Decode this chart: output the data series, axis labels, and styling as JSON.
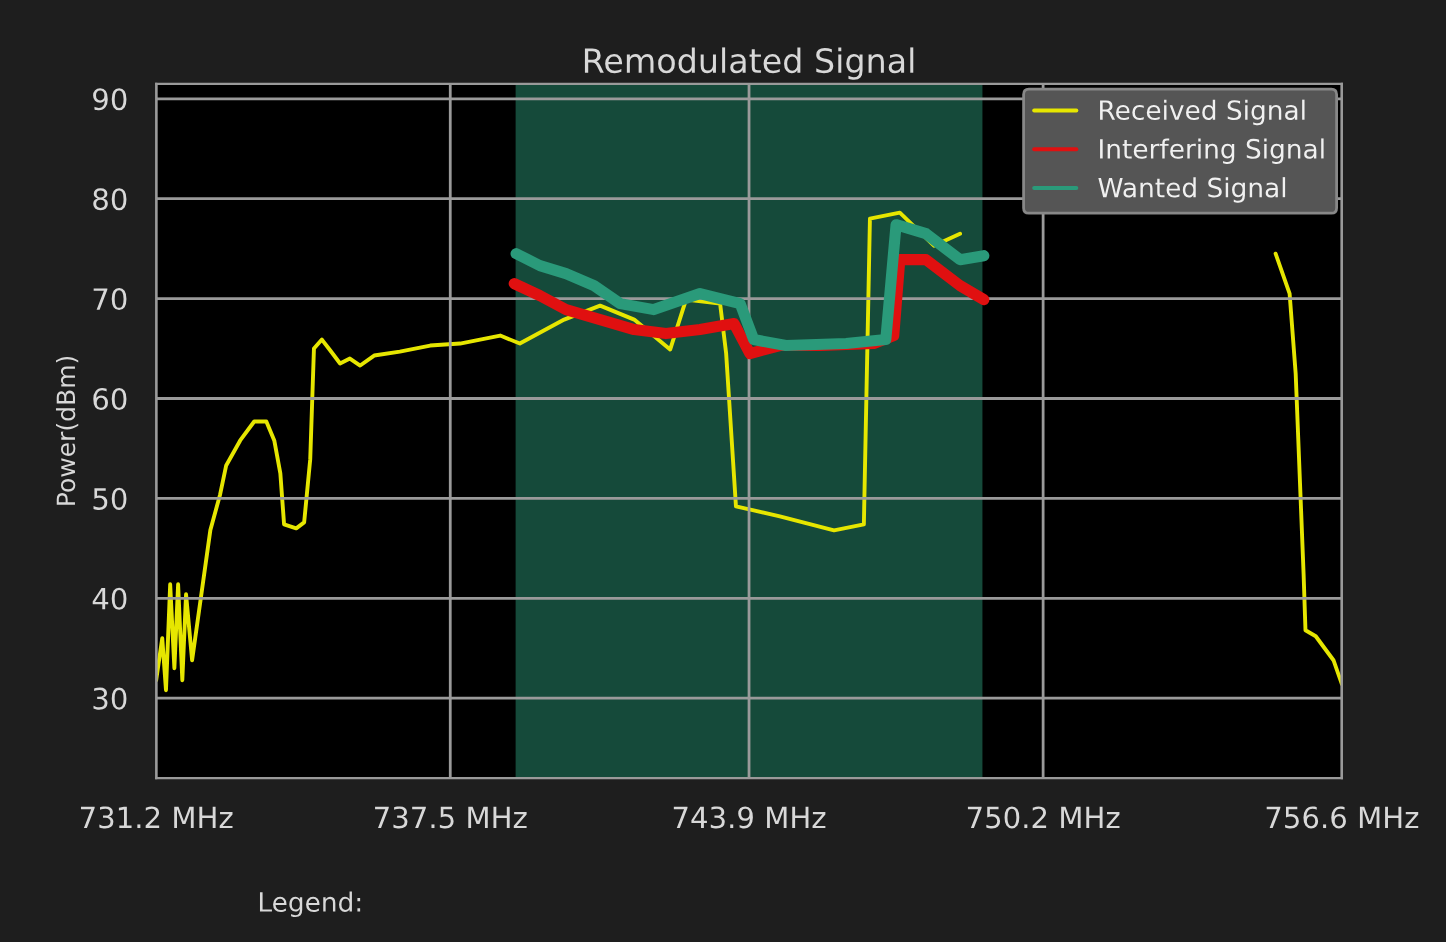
{
  "chart_data": {
    "type": "line",
    "title": "Remodulated Signal",
    "ylabel": "Power(dBm)",
    "xlim": [
      731.2,
      756.6
    ],
    "xticks": [
      {
        "value": 731.2,
        "label": "731.2 MHz"
      },
      {
        "value": 737.5,
        "label": "737.5 MHz"
      },
      {
        "value": 743.9,
        "label": "743.9 MHz"
      },
      {
        "value": 750.2,
        "label": "750.2 MHz"
      },
      {
        "value": 756.6,
        "label": "756.6 MHz"
      }
    ],
    "ylim": [
      22,
      91.5
    ],
    "yticks": [
      30,
      40,
      50,
      60,
      70,
      80,
      90
    ],
    "grid": true,
    "legend": "top right",
    "marker": "none",
    "line_style": "solid",
    "bands": [
      {
        "axis": "x",
        "from": 738.9,
        "to": 748.9,
        "color": "#154a3a"
      }
    ],
    "annotations": [
      "Legend:"
    ],
    "series": [
      {
        "name": "Received Signal",
        "color": "#e6e600",
        "x": [
          731.2,
          731.33,
          731.41,
          731.5,
          731.59,
          731.67,
          731.76,
          731.84,
          731.97,
          732.36,
          732.57,
          732.7,
          733.0,
          733.3,
          733.56,
          733.73,
          733.86,
          733.94,
          734.2,
          734.37,
          734.5,
          734.58,
          734.75,
          734.93,
          735.14,
          735.35,
          735.57,
          735.87,
          736.42,
          737.07,
          737.71,
          738.57,
          738.99,
          739.94,
          740.71,
          741.44,
          742.21,
          742.55,
          743.28,
          743.41,
          743.62,
          744.0,
          744.56,
          745.72,
          746.36,
          746.49,
          747.13,
          747.86,
          748.42,
          751.84,
          755.18,
          755.48,
          755.61,
          755.78,
          755.82,
          756.04,
          756.42,
          756.6
        ],
        "values": [
          31.8,
          36,
          30.8,
          41.4,
          33,
          41.4,
          31.8,
          40.4,
          33.8,
          46.8,
          50.4,
          53.3,
          55.8,
          57.7,
          57.7,
          55.8,
          52.5,
          47.4,
          47,
          47.6,
          53.9,
          65,
          65.9,
          64.8,
          63.5,
          64,
          63.3,
          64.3,
          64.7,
          65.3,
          65.5,
          66.3,
          65.5,
          67.9,
          69.3,
          67.9,
          64.9,
          69.9,
          69.5,
          64.5,
          49.2,
          48.8,
          48.2,
          46.8,
          47.4,
          78,
          78.6,
          75.3,
          76.5,
          null,
          74.5,
          70.5,
          62.5,
          42.4,
          36.8,
          36.2,
          33.8,
          31.4
        ]
      },
      {
        "name": "Interfering Signal",
        "color": "#e01010",
        "x": [
          738.87,
          739.42,
          739.98,
          740.71,
          741.44,
          742.12,
          742.85,
          743.58,
          743.92,
          744.56,
          745.42,
          746.57,
          747.0,
          747.13,
          747.69,
          748.42,
          748.93
        ],
        "values": [
          71.5,
          70.3,
          68.9,
          67.9,
          66.9,
          66.5,
          66.9,
          67.5,
          64.5,
          65.3,
          65.3,
          65.5,
          66.3,
          73.9,
          73.9,
          71.3,
          69.9
        ]
      },
      {
        "name": "Wanted Signal",
        "color": "#2a9a7a",
        "x": [
          738.91,
          739.42,
          739.98,
          740.58,
          741.14,
          741.86,
          742.85,
          743.71,
          744.0,
          744.69,
          745.98,
          746.83,
          747.05,
          747.69,
          748.42,
          748.93
        ],
        "values": [
          74.5,
          73.3,
          72.5,
          71.3,
          69.5,
          68.9,
          70.5,
          69.5,
          65.9,
          65.3,
          65.5,
          65.9,
          77.4,
          76.5,
          73.9,
          74.3
        ]
      }
    ]
  }
}
